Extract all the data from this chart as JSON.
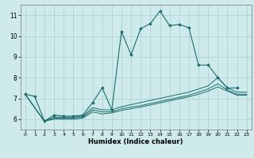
{
  "xlabel": "Humidex (Indice chaleur)",
  "bg_color": "#ceeaea",
  "grid_color": "#aacfcf",
  "line_color": "#1a6e6e",
  "xlim": [
    -0.5,
    23.5
  ],
  "ylim": [
    5.5,
    11.5
  ],
  "yticks": [
    6,
    7,
    8,
    9,
    10,
    11
  ],
  "xticks": [
    0,
    1,
    2,
    3,
    4,
    5,
    6,
    7,
    8,
    9,
    10,
    11,
    12,
    13,
    14,
    15,
    16,
    17,
    18,
    19,
    20,
    21,
    22,
    23
  ],
  "line1_x": [
    0,
    1,
    2,
    3,
    4,
    5,
    6,
    7,
    8,
    9,
    10,
    11,
    12,
    13,
    14,
    15,
    16,
    17,
    18,
    19,
    20,
    21,
    22
  ],
  "line1_y": [
    7.2,
    7.1,
    5.9,
    6.2,
    6.15,
    6.15,
    6.2,
    6.8,
    7.5,
    6.45,
    10.2,
    9.1,
    10.35,
    10.6,
    11.2,
    10.5,
    10.55,
    10.4,
    8.6,
    8.6,
    8.0,
    7.5,
    7.5
  ],
  "line2_x": [
    0,
    2,
    3,
    4,
    5,
    6,
    7,
    8,
    9,
    10,
    11,
    12,
    13,
    14,
    15,
    16,
    17,
    18,
    19,
    20,
    21,
    22,
    23
  ],
  "line2_y": [
    7.2,
    5.9,
    6.1,
    6.1,
    6.1,
    6.15,
    6.55,
    6.45,
    6.45,
    6.6,
    6.7,
    6.8,
    6.9,
    7.0,
    7.1,
    7.2,
    7.3,
    7.45,
    7.6,
    8.0,
    7.5,
    7.3,
    7.3
  ],
  "line3_x": [
    0,
    2,
    3,
    4,
    5,
    6,
    7,
    8,
    9,
    10,
    11,
    12,
    13,
    14,
    15,
    16,
    17,
    18,
    19,
    20,
    21,
    22,
    23
  ],
  "line3_y": [
    7.2,
    5.9,
    6.05,
    6.05,
    6.05,
    6.1,
    6.45,
    6.35,
    6.35,
    6.5,
    6.58,
    6.65,
    6.75,
    6.85,
    6.95,
    7.05,
    7.15,
    7.3,
    7.45,
    7.7,
    7.4,
    7.2,
    7.2
  ],
  "line4_x": [
    0,
    2,
    3,
    4,
    5,
    6,
    7,
    8,
    9,
    10,
    11,
    12,
    13,
    14,
    15,
    16,
    17,
    18,
    19,
    20,
    21,
    22,
    23
  ],
  "line4_y": [
    7.2,
    5.9,
    6.0,
    6.0,
    6.0,
    6.05,
    6.35,
    6.25,
    6.3,
    6.42,
    6.5,
    6.58,
    6.68,
    6.78,
    6.88,
    6.98,
    7.08,
    7.2,
    7.35,
    7.55,
    7.35,
    7.15,
    7.15
  ]
}
